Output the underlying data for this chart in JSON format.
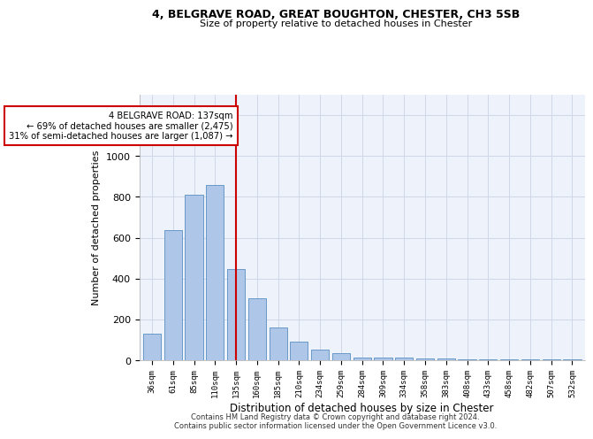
{
  "title_line1": "4, BELGRAVE ROAD, GREAT BOUGHTON, CHESTER, CH3 5SB",
  "title_line2": "Size of property relative to detached houses in Chester",
  "xlabel": "Distribution of detached houses by size in Chester",
  "ylabel": "Number of detached properties",
  "bar_labels": [
    "36sqm",
    "61sqm",
    "85sqm",
    "110sqm",
    "135sqm",
    "160sqm",
    "185sqm",
    "210sqm",
    "234sqm",
    "259sqm",
    "284sqm",
    "309sqm",
    "334sqm",
    "358sqm",
    "383sqm",
    "408sqm",
    "433sqm",
    "458sqm",
    "482sqm",
    "507sqm",
    "532sqm"
  ],
  "bar_values": [
    130,
    635,
    810,
    860,
    445,
    305,
    160,
    93,
    50,
    35,
    15,
    15,
    15,
    10,
    10,
    5,
    5,
    5,
    5,
    5,
    5
  ],
  "bar_color": "#aec6e8",
  "bar_edge_color": "#5a8fc2",
  "highlight_index": 4,
  "ylim": [
    0,
    1300
  ],
  "yticks": [
    0,
    200,
    400,
    600,
    800,
    1000,
    1200
  ],
  "annotation_text": "4 BELGRAVE ROAD: 137sqm\n← 69% of detached houses are smaller (2,475)\n31% of semi-detached houses are larger (1,087) →",
  "footnote_line1": "Contains HM Land Registry data © Crown copyright and database right 2024.",
  "footnote_line2": "Contains public sector information licensed under the Open Government Licence v3.0.",
  "background_color": "#ffffff",
  "plot_bg_color": "#eef2fa",
  "grid_color": "#d0d8e8",
  "annotation_box_color": "#ffffff",
  "annotation_box_edge": "#cc0000",
  "red_line_color": "#cc0000"
}
